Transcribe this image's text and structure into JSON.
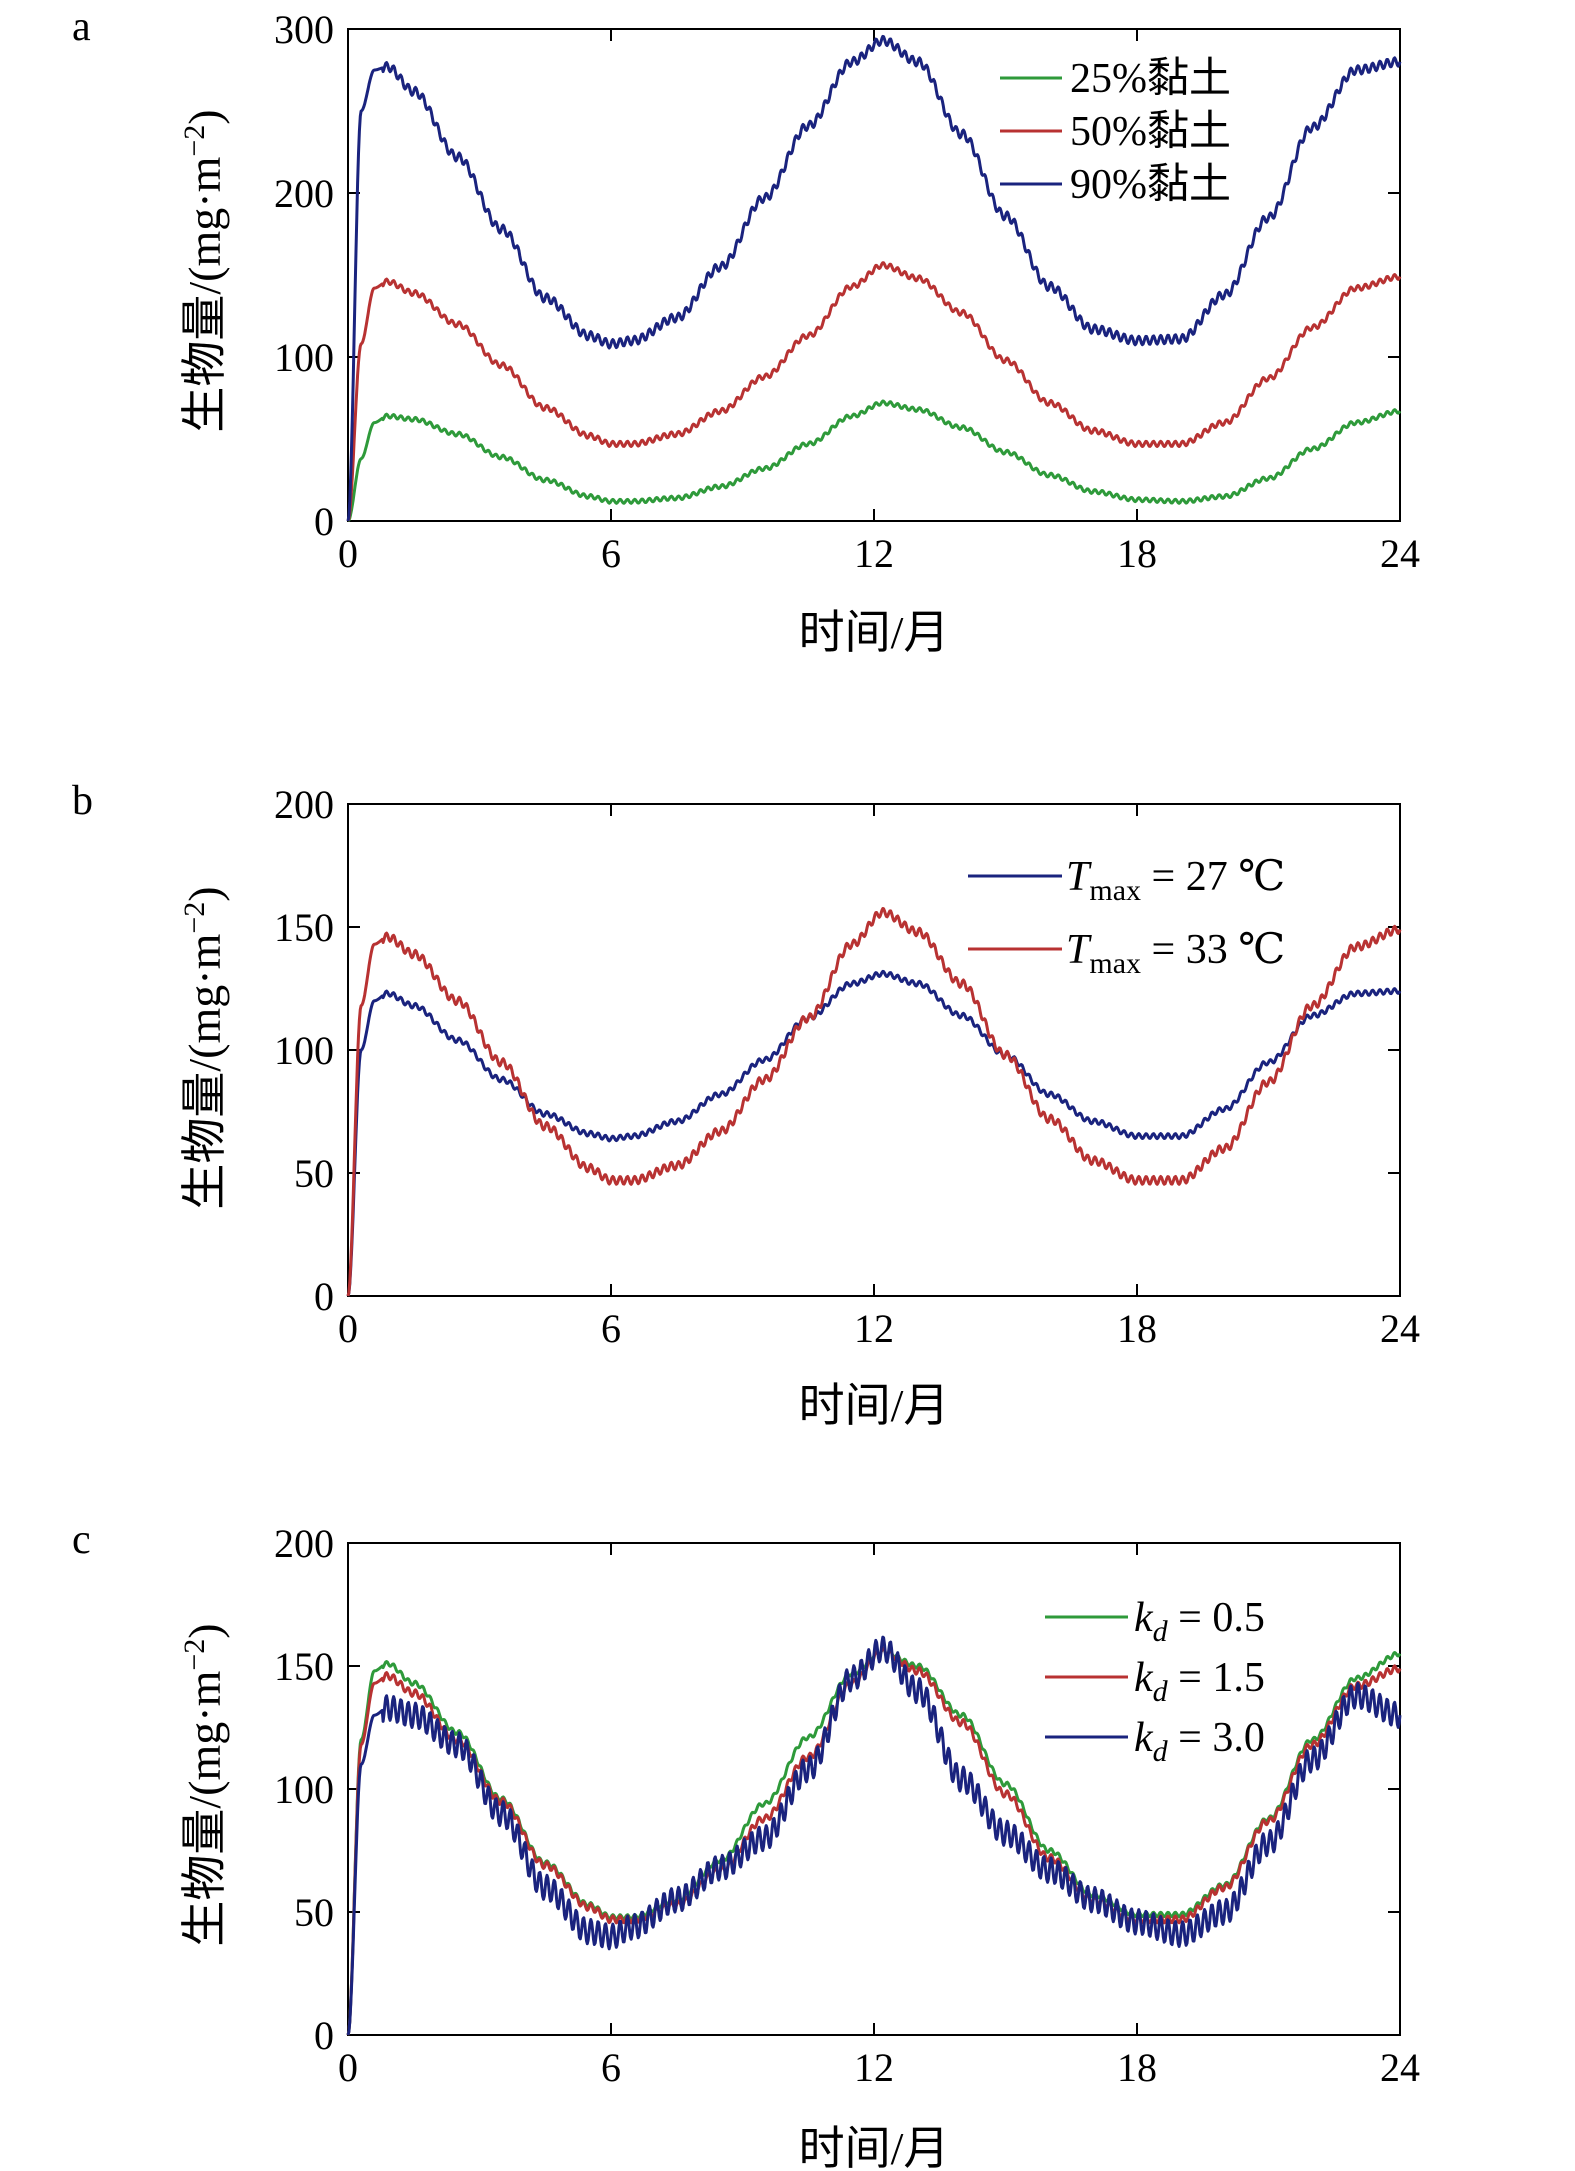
{
  "chart_data": [
    {
      "type": "line",
      "panel_label": "a",
      "xlabel": "时间/月",
      "ylabel": "生物量/(mg·m−2)",
      "xlim": [
        0,
        24
      ],
      "ylim": [
        0,
        300
      ],
      "x_ticks": [
        "0",
        "6",
        "12",
        "18",
        "24"
      ],
      "y_ticks": [
        "0",
        "100",
        "200",
        "300"
      ],
      "legend_position": "top-right",
      "series": [
        {
          "name": "25%黏土",
          "color": "#2e9a3a",
          "legend_text": "25%黏土",
          "points": [
            [
              0,
              0
            ],
            [
              0.3,
              38
            ],
            [
              0.6,
              60
            ],
            [
              0.9,
              64
            ],
            [
              1.5,
              62
            ],
            [
              2.5,
              53
            ],
            [
              3.5,
              39
            ],
            [
              4.5,
              25
            ],
            [
              5.5,
              15
            ],
            [
              6,
              12
            ],
            [
              6.5,
              12
            ],
            [
              7.5,
              14
            ],
            [
              8.5,
              21
            ],
            [
              9.5,
              32
            ],
            [
              10.5,
              47
            ],
            [
              11.5,
              64
            ],
            [
              12.2,
              72
            ],
            [
              13,
              68
            ],
            [
              14,
              57
            ],
            [
              15,
              42
            ],
            [
              16,
              28
            ],
            [
              17,
              18
            ],
            [
              18,
              13
            ],
            [
              19,
              12
            ],
            [
              20,
              15
            ],
            [
              21,
              26
            ],
            [
              22,
              44
            ],
            [
              23,
              60
            ],
            [
              24,
              67
            ]
          ]
        },
        {
          "name": "50%黏土",
          "color": "#b83232",
          "legend_text": "50%黏土",
          "points": [
            [
              0,
              0
            ],
            [
              0.3,
              108
            ],
            [
              0.6,
              142
            ],
            [
              0.9,
              146
            ],
            [
              1.5,
              139
            ],
            [
              2.5,
              120
            ],
            [
              3.5,
              95
            ],
            [
              4.5,
              69
            ],
            [
              5.5,
              52
            ],
            [
              6,
              47
            ],
            [
              6.5,
              47
            ],
            [
              7.5,
              53
            ],
            [
              8.5,
              67
            ],
            [
              9.5,
              88
            ],
            [
              10.5,
              113
            ],
            [
              11.5,
              143
            ],
            [
              12.2,
              156
            ],
            [
              13,
              148
            ],
            [
              14,
              127
            ],
            [
              15,
              98
            ],
            [
              16,
              72
            ],
            [
              17,
              55
            ],
            [
              18,
              47
            ],
            [
              19,
              47
            ],
            [
              20,
              60
            ],
            [
              21,
              87
            ],
            [
              22,
              118
            ],
            [
              23,
              142
            ],
            [
              24,
              149
            ]
          ]
        },
        {
          "name": "90%黏土",
          "color": "#1a237e",
          "legend_text": "90%黏土",
          "points": [
            [
              0,
              0
            ],
            [
              0.3,
              250
            ],
            [
              0.6,
              275
            ],
            [
              0.9,
              277
            ],
            [
              1.5,
              262
            ],
            [
              2.5,
              222
            ],
            [
              3.5,
              178
            ],
            [
              4.5,
              136
            ],
            [
              5.5,
              113
            ],
            [
              6,
              108
            ],
            [
              6.5,
              110
            ],
            [
              7.5,
              124
            ],
            [
              8.5,
              155
            ],
            [
              9.5,
              197
            ],
            [
              10.5,
              241
            ],
            [
              11.5,
              280
            ],
            [
              12.2,
              293
            ],
            [
              13,
              280
            ],
            [
              14,
              236
            ],
            [
              15,
              186
            ],
            [
              16,
              143
            ],
            [
              17,
              117
            ],
            [
              18,
              110
            ],
            [
              19,
              111
            ],
            [
              20,
              138
            ],
            [
              21,
              185
            ],
            [
              22,
              240
            ],
            [
              23,
              275
            ],
            [
              24,
              280
            ]
          ]
        }
      ]
    },
    {
      "type": "line",
      "panel_label": "b",
      "xlabel": "时间/月",
      "ylabel": "生物量/(mg·m−2)",
      "xlim": [
        0,
        24
      ],
      "ylim": [
        0,
        200
      ],
      "x_ticks": [
        "0",
        "6",
        "12",
        "18",
        "24"
      ],
      "y_ticks": [
        "0",
        "50",
        "100",
        "150",
        "200"
      ],
      "legend_position": "top-right",
      "series": [
        {
          "name": "Tmax = 27 ℃",
          "color": "#1a237e",
          "legend_main": "T",
          "legend_sub": "max",
          "legend_rest": " = 27 ℃",
          "points": [
            [
              0,
              0
            ],
            [
              0.3,
              100
            ],
            [
              0.6,
              120
            ],
            [
              0.9,
              123
            ],
            [
              1.5,
              118
            ],
            [
              2.5,
              104
            ],
            [
              3.5,
              88
            ],
            [
              4.5,
              74
            ],
            [
              5.5,
              66
            ],
            [
              6,
              64
            ],
            [
              6.5,
              65
            ],
            [
              7.5,
              71
            ],
            [
              8.5,
              82
            ],
            [
              9.5,
              96
            ],
            [
              10.5,
              113
            ],
            [
              11.5,
              127
            ],
            [
              12.2,
              131
            ],
            [
              13,
              127
            ],
            [
              14,
              114
            ],
            [
              15,
              98
            ],
            [
              16,
              82
            ],
            [
              17,
              71
            ],
            [
              18,
              65
            ],
            [
              19,
              65
            ],
            [
              20,
              76
            ],
            [
              21,
              95
            ],
            [
              22,
              114
            ],
            [
              23,
              123
            ],
            [
              24,
              124
            ]
          ]
        },
        {
          "name": "Tmax = 33 ℃",
          "color": "#b83232",
          "legend_main": "T",
          "legend_sub": "max",
          "legend_rest": " = 33 ℃",
          "points": [
            [
              0,
              0
            ],
            [
              0.3,
              118
            ],
            [
              0.6,
              143
            ],
            [
              0.9,
              146
            ],
            [
              1.5,
              139
            ],
            [
              2.5,
              120
            ],
            [
              3.5,
              95
            ],
            [
              4.5,
              69
            ],
            [
              5.5,
              52
            ],
            [
              6,
              47
            ],
            [
              6.5,
              47
            ],
            [
              7.5,
              53
            ],
            [
              8.5,
              67
            ],
            [
              9.5,
              88
            ],
            [
              10.5,
              113
            ],
            [
              11.5,
              143
            ],
            [
              12.2,
              156
            ],
            [
              13,
              148
            ],
            [
              14,
              127
            ],
            [
              15,
              98
            ],
            [
              16,
              72
            ],
            [
              17,
              55
            ],
            [
              18,
              47
            ],
            [
              19,
              47
            ],
            [
              20,
              60
            ],
            [
              21,
              87
            ],
            [
              22,
              118
            ],
            [
              23,
              142
            ],
            [
              24,
              149
            ]
          ]
        }
      ]
    },
    {
      "type": "line",
      "panel_label": "c",
      "xlabel": "时间/月",
      "ylabel": "生物量/(mg·m−2)",
      "xlim": [
        0,
        24
      ],
      "ylim": [
        0,
        200
      ],
      "x_ticks": [
        "0",
        "6",
        "12",
        "18",
        "24"
      ],
      "y_ticks": [
        "0",
        "50",
        "100",
        "150",
        "200"
      ],
      "legend_position": "top-right",
      "series": [
        {
          "name": "kd = 0.5",
          "color": "#2e9a3a",
          "legend_main": "k",
          "legend_sub": "d",
          "legend_rest": " = 0.5",
          "points": [
            [
              0,
              0
            ],
            [
              0.3,
              120
            ],
            [
              0.6,
              148
            ],
            [
              0.9,
              151
            ],
            [
              1.5,
              143
            ],
            [
              2.5,
              123
            ],
            [
              3.5,
              96
            ],
            [
              4.5,
              70
            ],
            [
              5.5,
              53
            ],
            [
              6,
              48
            ],
            [
              6.5,
              48
            ],
            [
              7.5,
              55
            ],
            [
              8.5,
              71
            ],
            [
              9.5,
              94
            ],
            [
              10.5,
              121
            ],
            [
              11.5,
              147
            ],
            [
              12.2,
              156
            ],
            [
              13,
              150
            ],
            [
              14,
              130
            ],
            [
              15,
              102
            ],
            [
              16,
              75
            ],
            [
              17,
              57
            ],
            [
              18,
              49
            ],
            [
              19,
              49
            ],
            [
              20,
              61
            ],
            [
              21,
              88
            ],
            [
              22,
              120
            ],
            [
              23,
              145
            ],
            [
              24,
              155
            ]
          ]
        },
        {
          "name": "kd = 1.5",
          "color": "#b83232",
          "legend_main": "k",
          "legend_sub": "d",
          "legend_rest": " = 1.5",
          "points": [
            [
              0,
              0
            ],
            [
              0.3,
              118
            ],
            [
              0.6,
              143
            ],
            [
              0.9,
              146
            ],
            [
              1.5,
              139
            ],
            [
              2.5,
              120
            ],
            [
              3.5,
              95
            ],
            [
              4.5,
              69
            ],
            [
              5.5,
              52
            ],
            [
              6,
              47
            ],
            [
              6.5,
              47
            ],
            [
              7.5,
              53
            ],
            [
              8.5,
              67
            ],
            [
              9.5,
              88
            ],
            [
              10.5,
              113
            ],
            [
              11.5,
              143
            ],
            [
              12.2,
              156
            ],
            [
              13,
              148
            ],
            [
              14,
              127
            ],
            [
              15,
              98
            ],
            [
              16,
              72
            ],
            [
              17,
              55
            ],
            [
              18,
              47
            ],
            [
              19,
              47
            ],
            [
              20,
              60
            ],
            [
              21,
              87
            ],
            [
              22,
              118
            ],
            [
              23,
              142
            ],
            [
              24,
              149
            ]
          ]
        },
        {
          "name": "kd = 3.0",
          "color": "#1a237e",
          "legend_main": "k",
          "legend_sub": "d",
          "legend_rest": " = 3.0",
          "points": [
            [
              0,
              0
            ],
            [
              0.3,
              110
            ],
            [
              0.6,
              130
            ],
            [
              0.9,
              133
            ],
            [
              1.5,
              130
            ],
            [
              2.5,
              118
            ],
            [
              3.5,
              90
            ],
            [
              4.5,
              60
            ],
            [
              5.5,
              42
            ],
            [
              6,
              40
            ],
            [
              6.5,
              44
            ],
            [
              7.5,
              55
            ],
            [
              8.5,
              68
            ],
            [
              9.5,
              80
            ],
            [
              10.5,
              108
            ],
            [
              11.5,
              145
            ],
            [
              12.2,
              157
            ],
            [
              13,
              140
            ],
            [
              14,
              104
            ],
            [
              15,
              82
            ],
            [
              16,
              67
            ],
            [
              17,
              55
            ],
            [
              18,
              46
            ],
            [
              19,
              41
            ],
            [
              20,
              50
            ],
            [
              21,
              78
            ],
            [
              22,
              112
            ],
            [
              23,
              138
            ],
            [
              24,
              130
            ]
          ]
        }
      ]
    }
  ]
}
